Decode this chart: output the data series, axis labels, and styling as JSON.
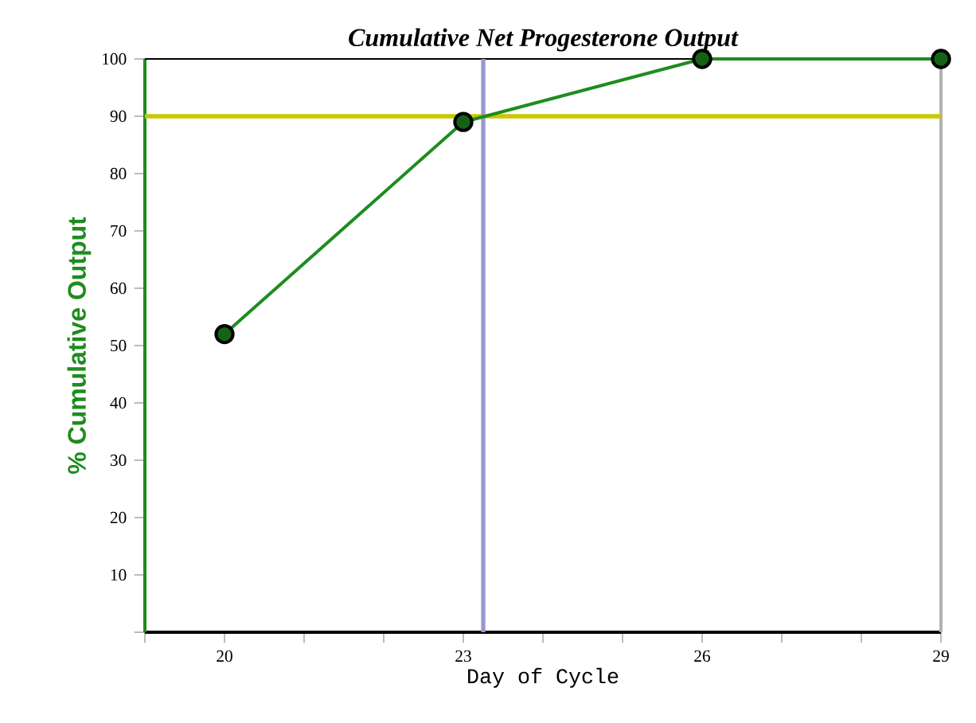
{
  "chart_data": {
    "type": "line",
    "title": "Cumulative Net Progesterone Output",
    "xlabel": "Day of Cycle",
    "ylabel": "% Cumulative Output",
    "x": [
      20,
      23,
      26,
      29
    ],
    "series": [
      {
        "color": "#1e8c1e",
        "values": [
          52,
          89,
          100,
          100
        ]
      }
    ],
    "marker": "circle",
    "line_style": "solid",
    "xlim": [
      19,
      29
    ],
    "ylim": [
      0,
      100
    ],
    "xticks": [
      {
        "value": 19,
        "label": null
      },
      20,
      {
        "value": 21,
        "label": null
      },
      {
        "value": 22,
        "label": null
      },
      23,
      {
        "value": 24,
        "label": null
      },
      {
        "value": 25,
        "label": null
      },
      26,
      {
        "value": 27,
        "label": null
      },
      {
        "value": 28,
        "label": null
      },
      29
    ],
    "yticks": [
      {
        "value": 0,
        "label": null
      },
      10,
      20,
      30,
      40,
      50,
      60,
      70,
      80,
      90,
      100
    ],
    "ref_lines": [
      {
        "axis": "y",
        "value": 90,
        "color": "#c8c800"
      },
      {
        "axis": "x",
        "value": 23.25,
        "color": "#9999cc"
      }
    ]
  }
}
